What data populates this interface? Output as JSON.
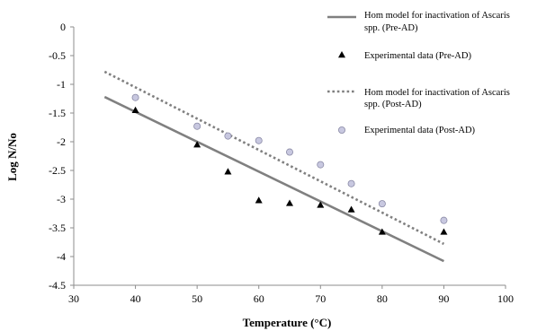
{
  "chart_data": {
    "type": "scatter",
    "xlabel": "Temperature (°C)",
    "ylabel": "Log N/No",
    "xlim": [
      30,
      100
    ],
    "ylim": [
      -4.5,
      0
    ],
    "x_ticks": [
      "30",
      "40",
      "50",
      "60",
      "70",
      "80",
      "90",
      "100"
    ],
    "y_ticks": [
      "0",
      "-0.5",
      "-1",
      "-1.5",
      "-2",
      "-2.5",
      "-3",
      "-3.5",
      "-4",
      "-4.5"
    ],
    "grid": false,
    "legend_position": "top-right",
    "series": [
      {
        "name": "Hom model for inactivation of Ascaris spp. (Pre-AD)",
        "legend_lines": [
          "Hom model for inactivation of Ascaris",
          "spp. (Pre-AD)"
        ],
        "kind": "line",
        "style": "solid",
        "color": "#808080",
        "x": [
          35,
          90
        ],
        "y": [
          -1.22,
          -4.08
        ]
      },
      {
        "name": "Experimental data (Pre-AD)",
        "legend_lines": [
          "Experimental data (Pre-AD)"
        ],
        "kind": "marker",
        "marker": "triangle",
        "color": "#000000",
        "x": [
          40,
          50,
          55,
          60,
          65,
          70,
          75,
          80,
          90
        ],
        "y": [
          -1.45,
          -2.05,
          -2.52,
          -3.02,
          -3.07,
          -3.1,
          -3.18,
          -3.57,
          -3.57
        ]
      },
      {
        "name": "Hom model for inactivation of Ascaris spp. (Post-AD)",
        "legend_lines": [
          "Hom model for inactivation of Ascaris",
          "spp. (Post-AD)"
        ],
        "kind": "line",
        "style": "dotted",
        "color": "#808080",
        "x": [
          35,
          90
        ],
        "y": [
          -0.78,
          -3.78
        ]
      },
      {
        "name": "Experimental data (Post-AD)",
        "legend_lines": [
          "Experimental data (Post-AD)"
        ],
        "kind": "marker",
        "marker": "circle",
        "color": "#c8c8e0",
        "x": [
          40,
          50,
          55,
          60,
          65,
          70,
          75,
          80,
          90
        ],
        "y": [
          -1.23,
          -1.73,
          -1.9,
          -1.98,
          -2.18,
          -2.4,
          -2.73,
          -3.08,
          -3.37
        ]
      }
    ]
  }
}
